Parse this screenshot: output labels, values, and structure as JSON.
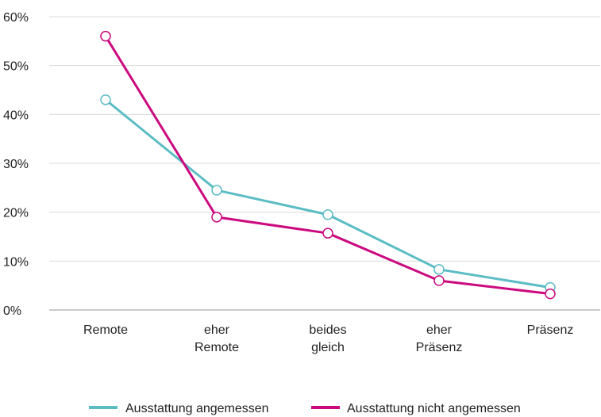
{
  "chart_data": {
    "type": "line",
    "categories": [
      [
        "Remote"
      ],
      [
        "eher",
        "Remote"
      ],
      [
        "beides",
        "gleich"
      ],
      [
        "eher",
        "Präsenz"
      ],
      [
        "Präsenz"
      ]
    ],
    "y_ticks": [
      "0%",
      "10%",
      "20%",
      "30%",
      "40%",
      "50%",
      "60%"
    ],
    "ylim": [
      0,
      60
    ],
    "grid": true,
    "legend_position": "bottom",
    "series": [
      {
        "name": "Ausstattung angemessen",
        "color": "#5bbcc4",
        "values": [
          43,
          24.5,
          19.5,
          8.3,
          4.6
        ]
      },
      {
        "name": "Ausstattung nicht angemessen",
        "color": "#cc0a7f",
        "values": [
          56,
          19,
          15.7,
          6,
          3.3
        ]
      }
    ]
  }
}
